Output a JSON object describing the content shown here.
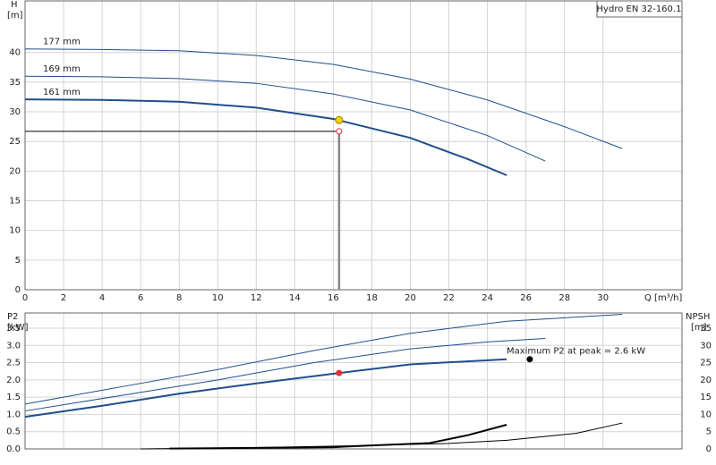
{
  "chart_data": [
    {
      "type": "line",
      "title": "Hydro EN 32-160.1",
      "xlabel": "Q [m³/h]",
      "ylabel": "H",
      "ylabel_unit": "[m]",
      "xlim": [
        0,
        34.1
      ],
      "xticks": [
        0,
        2,
        4,
        6,
        8,
        10,
        12,
        14,
        16,
        18,
        20,
        22,
        24,
        26,
        28,
        30
      ],
      "ylim": [
        0,
        48.7
      ],
      "yticks": [
        0,
        5,
        10,
        15,
        20,
        25,
        30,
        35,
        40
      ],
      "grid": true,
      "series": [
        {
          "name": "177 mm",
          "color": "#1f4e8c",
          "x": [
            0,
            4,
            8,
            12,
            16,
            20,
            24,
            28,
            31
          ],
          "values": [
            40.6,
            40.5,
            40.3,
            39.5,
            38,
            35.5,
            32,
            27.5,
            23.8
          ]
        },
        {
          "name": "169 mm",
          "color": "#1f4e8c",
          "x": [
            0,
            4,
            8,
            12,
            16,
            20,
            24,
            27
          ],
          "values": [
            36,
            35.9,
            35.6,
            34.8,
            33,
            30.3,
            26,
            21.7
          ]
        },
        {
          "name": "161 mm",
          "color": "#1f4e8c",
          "x": [
            0,
            4,
            8,
            12,
            16,
            20,
            23,
            25
          ],
          "values": [
            32.1,
            32,
            31.7,
            30.7,
            28.8,
            25.6,
            22,
            19.3
          ]
        }
      ],
      "operating_point": {
        "x": 16.3,
        "y": 28.6,
        "color": "#f5d20a"
      },
      "duty_point": {
        "x": 16.3,
        "y": 26.7,
        "color": "#e03030"
      }
    },
    {
      "type": "line",
      "ylabel": "P2",
      "ylabel_unit": "[kW]",
      "y2label": "NPSH",
      "y2label_unit": "[m]",
      "xlim": [
        0,
        34.1
      ],
      "xticks": [
        0,
        2,
        4,
        6,
        8,
        10,
        12,
        14,
        16,
        18,
        20,
        22,
        24,
        26,
        28,
        30
      ],
      "ylim": [
        0,
        3.94
      ],
      "yticks": [
        {
          "value": 0,
          "label": "0.0"
        },
        {
          "value": 0.5,
          "label": "0.5"
        },
        {
          "value": 1,
          "label": "1.0"
        },
        {
          "value": 1.5,
          "label": "1.5"
        },
        {
          "value": 2,
          "label": "2.0"
        },
        {
          "value": 2.5,
          "label": "2.5"
        },
        {
          "value": 3,
          "label": "3.0"
        },
        {
          "value": 3.5,
          "label": "3.5"
        }
      ],
      "y2lim": [
        0,
        39.4
      ],
      "y2ticks": [
        0,
        5,
        10,
        15,
        20,
        25,
        30,
        35
      ],
      "grid": true,
      "series": [
        {
          "color": "#1f4e8c",
          "x": [
            0,
            5,
            10,
            15,
            20,
            25,
            31
          ],
          "values": [
            1.3,
            1.8,
            2.3,
            2.85,
            3.35,
            3.7,
            3.9
          ]
        },
        {
          "color": "#1f4e8c",
          "x": [
            0,
            5,
            10,
            15,
            20,
            24,
            27
          ],
          "values": [
            1.1,
            1.55,
            2.0,
            2.5,
            2.9,
            3.1,
            3.2
          ]
        },
        {
          "color": "#1f4e8c",
          "x": [
            0,
            4,
            8,
            12,
            16.3,
            20,
            25
          ],
          "values": [
            0.93,
            1.25,
            1.6,
            1.9,
            2.2,
            2.45,
            2.6
          ]
        },
        {
          "color": "#000000",
          "axis": "y2",
          "x": [
            7.5,
            12,
            16,
            18,
            21,
            23,
            25
          ],
          "values": [
            0.1,
            0.3,
            0.5,
            1,
            1.7,
            4,
            7
          ]
        },
        {
          "color": "#000000",
          "axis": "y2",
          "x": [
            6,
            12,
            18,
            22,
            25,
            28.6,
            31
          ],
          "values": [
            0,
            0.4,
            1,
            1.6,
            2.5,
            4.5,
            7.5
          ]
        }
      ],
      "marker": {
        "x": 16.3,
        "y": 2.2,
        "color": "#e03030"
      },
      "annotation": {
        "text": "Maximum P2 at peak = 2.6 kW",
        "x": 26.2,
        "y": 2.6
      }
    }
  ]
}
